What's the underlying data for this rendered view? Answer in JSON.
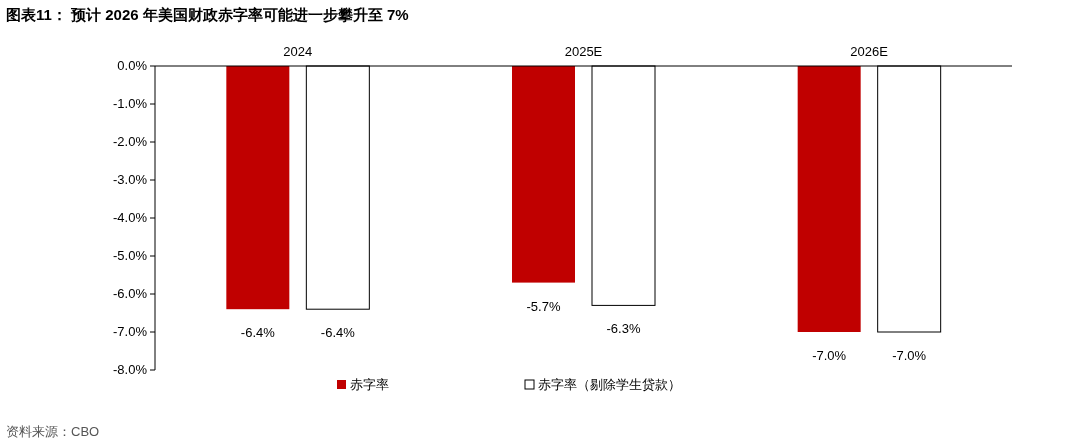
{
  "chart_data": {
    "type": "bar",
    "title": "图表11： 预计 2026 年美国财政赤字率可能进一步攀升至 7%",
    "categories": [
      "2024",
      "2025E",
      "2026E"
    ],
    "series": [
      {
        "name": "赤字率",
        "color": "#c00000",
        "values": [
          -6.4,
          -5.7,
          -7.0
        ],
        "value_labels": [
          "-6.4%",
          "-5.7%",
          "-7.0%"
        ]
      },
      {
        "name": "赤字率（剔除学生贷款）",
        "color": "#ffffff",
        "values": [
          -6.4,
          -6.3,
          -7.0
        ],
        "value_labels": [
          "-6.4%",
          "-6.3%",
          "-7.0%"
        ]
      }
    ],
    "ylim": [
      -8,
      0
    ],
    "yticks": [
      {
        "value": 0,
        "label": "0.0%"
      },
      {
        "value": -1,
        "label": "-1.0%"
      },
      {
        "value": -2,
        "label": "-2.0%"
      },
      {
        "value": -3,
        "label": "-3.0%"
      },
      {
        "value": -4,
        "label": "-4.0%"
      },
      {
        "value": -5,
        "label": "-5.0%"
      },
      {
        "value": -6,
        "label": "-6.0%"
      },
      {
        "value": -7,
        "label": "-7.0%"
      },
      {
        "value": -8,
        "label": "-8.0%"
      }
    ],
    "legend": "bottom",
    "annotations": [
      "资料来源：CBO"
    ]
  }
}
